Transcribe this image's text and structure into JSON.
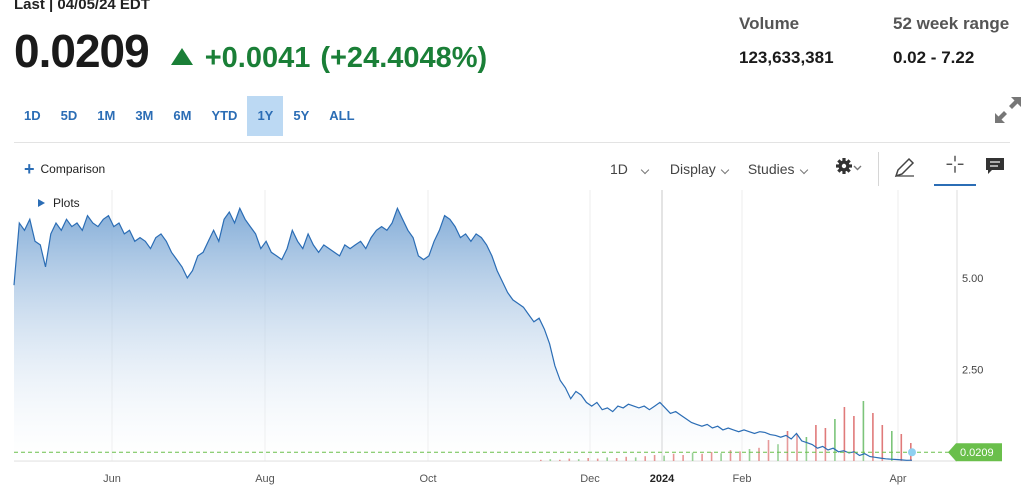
{
  "header": {
    "last_label": "Last | 04/05/24 EDT",
    "price": "0.0209",
    "change_value": "+0.0041",
    "change_percent": "(+24.4048%)",
    "change_color": "#1a7f37"
  },
  "stats": {
    "volume_label": "Volume",
    "volume_value": "123,633,381",
    "range_label": "52 week range",
    "range_value": "0.02 - 7.22"
  },
  "ranges": {
    "items": [
      "1D",
      "5D",
      "1M",
      "3M",
      "6M",
      "YTD",
      "1Y",
      "5Y",
      "ALL"
    ],
    "selected": "1Y"
  },
  "toolbar": {
    "comparison_label": "Comparison",
    "interval_label": "1D",
    "display_label": "Display",
    "studies_label": "Studies",
    "plots_label": "Plots",
    "icons": [
      "expand-icon",
      "gear-icon",
      "pencil-icon",
      "crosshair-icon",
      "chat-icon"
    ]
  },
  "chart_data": {
    "type": "area",
    "title": "",
    "xlabel": "",
    "ylabel": "",
    "line_color": "#2b6db5",
    "fill_color": "#9dbfe3",
    "last_value_label": "0.0209",
    "last_value_color": "#6abf4b",
    "y_ticks": [
      2.5,
      5.0
    ],
    "y_tick_labels": [
      "2.50",
      "5.00"
    ],
    "x_tick_labels": [
      "Jun",
      "Aug",
      "Oct",
      "Dec",
      "2024",
      "Feb",
      "Apr"
    ],
    "ylim": [
      0,
      7.4
    ],
    "series": [
      {
        "values": [
          4.8,
          6.5,
          6.3,
          6.6,
          6.0,
          5.9,
          5.3,
          6.2,
          6.5,
          6.3,
          6.6,
          6.4,
          6.5,
          6.3,
          6.7,
          6.5,
          6.4,
          6.6,
          6.7,
          6.4,
          6.5,
          6.2,
          6.3,
          6.0,
          6.1,
          6.0,
          5.8,
          6.1,
          6.2,
          6.0,
          5.7,
          5.5,
          5.3,
          5.0,
          5.2,
          5.6,
          5.7,
          6.0,
          6.3,
          6.0,
          6.6,
          6.8,
          6.5,
          6.9,
          6.6,
          6.4,
          6.2,
          5.8,
          6.0,
          5.7,
          5.6,
          5.5,
          5.8,
          6.3,
          6.0,
          5.8,
          6.2,
          5.9,
          5.7,
          5.9,
          5.8,
          5.7,
          5.6,
          5.9,
          5.8,
          5.9,
          6.0,
          5.8,
          6.1,
          6.3,
          6.4,
          6.3,
          6.5,
          6.9,
          6.6,
          6.3,
          6.1,
          5.6,
          5.5,
          5.6,
          6.0,
          6.3,
          6.7,
          6.6,
          6.4,
          6.1,
          6.2,
          6.0,
          6.2,
          6.1,
          5.9,
          5.6,
          5.2,
          4.9,
          4.6,
          4.4,
          4.3,
          4.2,
          4.0,
          3.8,
          3.9,
          3.6,
          3.2,
          2.6,
          2.2,
          2.0,
          1.7,
          1.9,
          1.8,
          1.6,
          1.5,
          1.6,
          1.4,
          1.45,
          1.35,
          1.5,
          1.45,
          1.55,
          1.5,
          1.45,
          1.5,
          1.4,
          1.5,
          1.6,
          1.45,
          1.3,
          1.35,
          1.25,
          1.15,
          1.05,
          1.0,
          0.95,
          1.0,
          0.9,
          0.95,
          0.85,
          0.9,
          0.85,
          0.8,
          0.85,
          0.8,
          0.75,
          0.8,
          0.78,
          0.72,
          0.7,
          0.65,
          0.7,
          0.6,
          0.75,
          0.55,
          0.5,
          0.45,
          0.35,
          0.4,
          0.3,
          0.35,
          0.25,
          0.28,
          0.22,
          0.25,
          0.15,
          0.2,
          0.12,
          0.1,
          0.08,
          0.06,
          0.05,
          0.04,
          0.03,
          0.02,
          0.0209
        ]
      }
    ],
    "volume_bars": [
      0.02,
      0.03,
      0.02,
      0.04,
      0.03,
      0.05,
      0.04,
      0.06,
      0.05,
      0.07,
      0.06,
      0.08,
      0.1,
      0.09,
      0.12,
      0.1,
      0.14,
      0.12,
      0.15,
      0.13,
      0.18,
      0.16,
      0.2,
      0.22,
      0.35,
      0.28,
      0.5,
      0.45,
      0.4,
      0.6,
      0.55,
      0.7,
      0.9,
      0.75,
      1.0,
      0.8,
      0.6,
      0.5,
      0.45,
      0.3
    ],
    "legend": "none",
    "grid": "vertical"
  }
}
